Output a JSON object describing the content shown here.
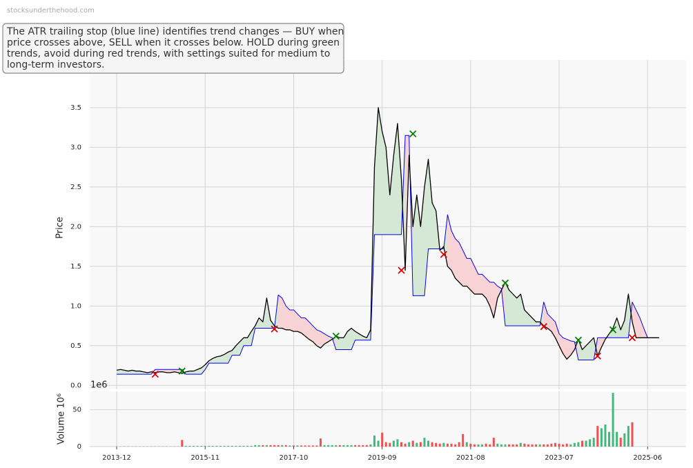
{
  "watermark": "stocksunderthehood.com",
  "annotation": [
    "The ATR trailing stop (blue line) identifies trend changes — BUY when",
    "price crosses above, SELL when it crosses below. HOLD during green",
    "trends, avoid during red trends, with settings suited for medium to",
    "long-term investors."
  ],
  "chart_data": [
    {
      "type": "line",
      "y_label": "Price",
      "xlim": [
        "2013-05",
        "2026-04"
      ],
      "ylim": [
        -0.05,
        4.1
      ],
      "yticks": [
        {
          "value": 0,
          "label": "0.0"
        },
        0.5,
        {
          "value": 1,
          "label": "1.0"
        },
        1.5,
        {
          "value": 2,
          "label": "2.0"
        },
        2.5,
        {
          "value": 3,
          "label": "3.0"
        },
        3.5
      ],
      "grid": true,
      "x": [
        "2013-12",
        "2014-01",
        "2014-02",
        "2014-03",
        "2014-04",
        "2014-05",
        "2014-06",
        "2014-07",
        "2014-08",
        "2014-09",
        "2014-10",
        "2014-11",
        "2014-12",
        "2015-01",
        "2015-02",
        "2015-03",
        "2015-04",
        "2015-05",
        "2015-06",
        "2015-07",
        "2015-08",
        "2015-09",
        "2015-10",
        "2015-11",
        "2015-12",
        "2016-01",
        "2016-02",
        "2016-03",
        "2016-04",
        "2016-05",
        "2016-06",
        "2016-07",
        "2016-08",
        "2016-09",
        "2016-10",
        "2016-11",
        "2016-12",
        "2017-01",
        "2017-02",
        "2017-03",
        "2017-04",
        "2017-05",
        "2017-06",
        "2017-07",
        "2017-08",
        "2017-09",
        "2017-10",
        "2017-11",
        "2017-12",
        "2018-01",
        "2018-02",
        "2018-03",
        "2018-04",
        "2018-05",
        "2018-06",
        "2018-07",
        "2018-08",
        "2018-09",
        "2018-10",
        "2018-11",
        "2018-12",
        "2019-01",
        "2019-02",
        "2019-03",
        "2019-04",
        "2019-05",
        "2019-06",
        "2019-07",
        "2019-08",
        "2019-09",
        "2019-10",
        "2019-11",
        "2019-12",
        "2020-01",
        "2020-02",
        "2020-03",
        "2020-04",
        "2020-05",
        "2020-06",
        "2020-07",
        "2020-08",
        "2020-09",
        "2020-10",
        "2020-11",
        "2020-12",
        "2021-01",
        "2021-02",
        "2021-03",
        "2021-04",
        "2021-05",
        "2021-06",
        "2021-07",
        "2021-08",
        "2021-09",
        "2021-10",
        "2021-11",
        "2021-12",
        "2022-01",
        "2022-02",
        "2022-03",
        "2022-04",
        "2022-05",
        "2022-06",
        "2022-07",
        "2022-08",
        "2022-09",
        "2022-10",
        "2022-11",
        "2022-12",
        "2023-01",
        "2023-02",
        "2023-03",
        "2023-04",
        "2023-05",
        "2023-06",
        "2023-07",
        "2023-08",
        "2023-09",
        "2023-10",
        "2023-11",
        "2023-12",
        "2024-01",
        "2024-02",
        "2024-03",
        "2024-04",
        "2024-05",
        "2024-06",
        "2024-07",
        "2024-08",
        "2024-09",
        "2024-10",
        "2024-11",
        "2024-12",
        "2025-01",
        "2025-02",
        "2025-03",
        "2025-04",
        "2025-05",
        "2025-06",
        "2025-07",
        "2025-08",
        "2025-09"
      ],
      "series": [
        {
          "color": "#000000",
          "values": [
            0.19,
            0.2,
            0.19,
            0.18,
            0.19,
            0.18,
            0.18,
            0.17,
            0.16,
            0.17,
            0.16,
            0.17,
            0.17,
            0.16,
            0.16,
            0.17,
            0.16,
            0.15,
            0.17,
            0.18,
            0.18,
            0.2,
            0.22,
            0.26,
            0.31,
            0.34,
            0.36,
            0.37,
            0.39,
            0.42,
            0.44,
            0.5,
            0.55,
            0.6,
            0.6,
            0.68,
            0.75,
            0.85,
            0.8,
            1.1,
            0.82,
            0.75,
            0.72,
            0.72,
            0.7,
            0.7,
            0.68,
            0.68,
            0.66,
            0.62,
            0.58,
            0.55,
            0.5,
            0.47,
            0.52,
            0.55,
            0.58,
            0.62,
            0.6,
            0.6,
            0.68,
            0.72,
            0.68,
            0.65,
            0.62,
            0.6,
            0.7,
            2.75,
            3.5,
            3.2,
            3.0,
            2.4,
            2.9,
            3.3,
            2.6,
            1.45,
            2.9,
            2.0,
            2.4,
            2.0,
            2.5,
            2.85,
            2.3,
            2.2,
            1.7,
            1.75,
            1.5,
            1.45,
            1.35,
            1.3,
            1.25,
            1.25,
            1.2,
            1.15,
            1.15,
            1.15,
            1.1,
            1.0,
            0.85,
            1.1,
            1.2,
            1.3,
            1.2,
            1.15,
            1.1,
            1.15,
            0.95,
            0.9,
            0.85,
            0.8,
            0.8,
            0.75,
            0.72,
            0.68,
            0.6,
            0.5,
            0.4,
            0.33,
            0.38,
            0.45,
            0.58,
            0.45,
            0.5,
            0.55,
            0.6,
            0.37,
            0.48,
            0.58,
            0.65,
            0.72,
            0.85,
            0.7,
            0.82,
            1.15,
            0.8,
            0.6,
            0.6,
            0.6,
            0.6,
            0.6,
            0.6,
            0.6
          ]
        },
        {
          "color": "#0000ee",
          "values": [
            0.14,
            0.14,
            0.14,
            0.14,
            0.14,
            0.14,
            0.14,
            0.14,
            0.14,
            0.14,
            0.2,
            0.2,
            0.2,
            0.2,
            0.2,
            0.2,
            0.2,
            0.2,
            0.14,
            0.14,
            0.14,
            0.14,
            0.14,
            0.2,
            0.28,
            0.28,
            0.28,
            0.28,
            0.28,
            0.28,
            0.38,
            0.38,
            0.38,
            0.5,
            0.5,
            0.5,
            0.72,
            0.72,
            0.72,
            0.72,
            0.72,
            0.72,
            1.14,
            1.1,
            1.0,
            0.95,
            0.95,
            0.9,
            0.85,
            0.85,
            0.8,
            0.75,
            0.7,
            0.68,
            0.65,
            0.62,
            0.6,
            0.45,
            0.45,
            0.45,
            0.45,
            0.45,
            0.57,
            0.57,
            0.57,
            0.57,
            0.57,
            1.9,
            1.9,
            1.9,
            1.9,
            1.9,
            1.9,
            1.9,
            1.9,
            3.15,
            3.15,
            1.13,
            1.13,
            1.13,
            1.13,
            1.72,
            1.72,
            1.72,
            1.72,
            1.72,
            2.15,
            1.95,
            1.85,
            1.8,
            1.7,
            1.6,
            1.6,
            1.5,
            1.4,
            1.4,
            1.35,
            1.3,
            1.3,
            1.25,
            1.22,
            0.75,
            0.75,
            0.75,
            0.75,
            0.75,
            0.75,
            0.75,
            0.75,
            0.75,
            0.75,
            1.05,
            0.9,
            0.85,
            0.8,
            0.65,
            0.6,
            0.58,
            0.56,
            0.55,
            0.32,
            0.32,
            0.32,
            0.32,
            0.32,
            0.6,
            0.6,
            0.6,
            0.6,
            0.6,
            0.6,
            0.6,
            0.6,
            0.6,
            1.05,
            0.95,
            0.85,
            0.72,
            0.6,
            null,
            null,
            null
          ]
        }
      ],
      "fill_up_color": "#d5e8d5",
      "fill_down_color": "#f8d3d5",
      "signals": [
        {
          "color": "#008000",
          "x": [
            "2015-05",
            "2018-09",
            "2020-05",
            "2022-05",
            "2023-12",
            "2024-09"
          ],
          "values": [
            0.18,
            0.62,
            3.17,
            1.29,
            0.57,
            0.7
          ]
        },
        {
          "color": "#dd0000",
          "x": [
            "2014-10",
            "2017-05",
            "2020-02",
            "2021-01",
            "2023-03",
            "2024-05",
            "2025-02"
          ],
          "values": [
            0.14,
            0.71,
            1.45,
            1.65,
            0.74,
            0.37,
            0.6
          ]
        }
      ]
    },
    {
      "type": "bar",
      "y_label": "Volume 10⁶",
      "offset_text": "1e6",
      "xlim": [
        "2013-05",
        "2026-04"
      ],
      "xticks": [
        "2013-12",
        "2015-11",
        "2017-10",
        "2019-09",
        "2021-08",
        "2023-07",
        "2025-06"
      ],
      "ylim": [
        0,
        75
      ],
      "yticks": [
        0,
        50
      ],
      "grid": true,
      "up_color": "#3dbb7a",
      "down_color": "#f05050",
      "values": [
        0.3,
        0.3,
        0.3,
        0.3,
        0.3,
        0.3,
        0.3,
        0.3,
        0.3,
        0.3,
        0.3,
        0.3,
        0.3,
        0.3,
        0.3,
        0.3,
        0.3,
        9,
        1,
        1,
        1,
        1,
        1,
        1,
        1,
        1,
        1,
        1,
        1,
        1,
        1,
        1,
        1,
        1,
        1,
        1,
        2,
        2,
        2,
        2,
        2,
        2,
        2,
        2,
        2,
        1.5,
        1.5,
        1.5,
        1.5,
        1.5,
        1.5,
        1.5,
        1.5,
        11,
        2,
        2,
        2,
        2,
        2,
        2,
        2,
        2,
        2,
        2,
        2,
        2,
        3,
        15,
        8,
        19,
        6,
        5,
        8,
        10,
        6,
        4,
        6,
        8,
        5,
        6,
        12,
        8,
        6,
        5,
        4,
        5,
        4,
        4,
        3,
        6,
        17,
        6,
        4,
        3,
        3,
        3,
        4,
        3,
        12,
        4,
        3,
        3,
        3,
        3,
        3,
        5,
        4,
        3,
        3,
        3,
        3,
        3,
        3,
        4,
        5,
        4,
        3,
        4,
        3,
        5,
        6,
        8,
        8,
        10,
        12,
        28,
        25,
        30,
        20,
        73,
        20,
        12,
        18,
        28,
        33,
        null,
        null,
        null,
        null,
        null,
        null,
        null
      ]
    }
  ]
}
